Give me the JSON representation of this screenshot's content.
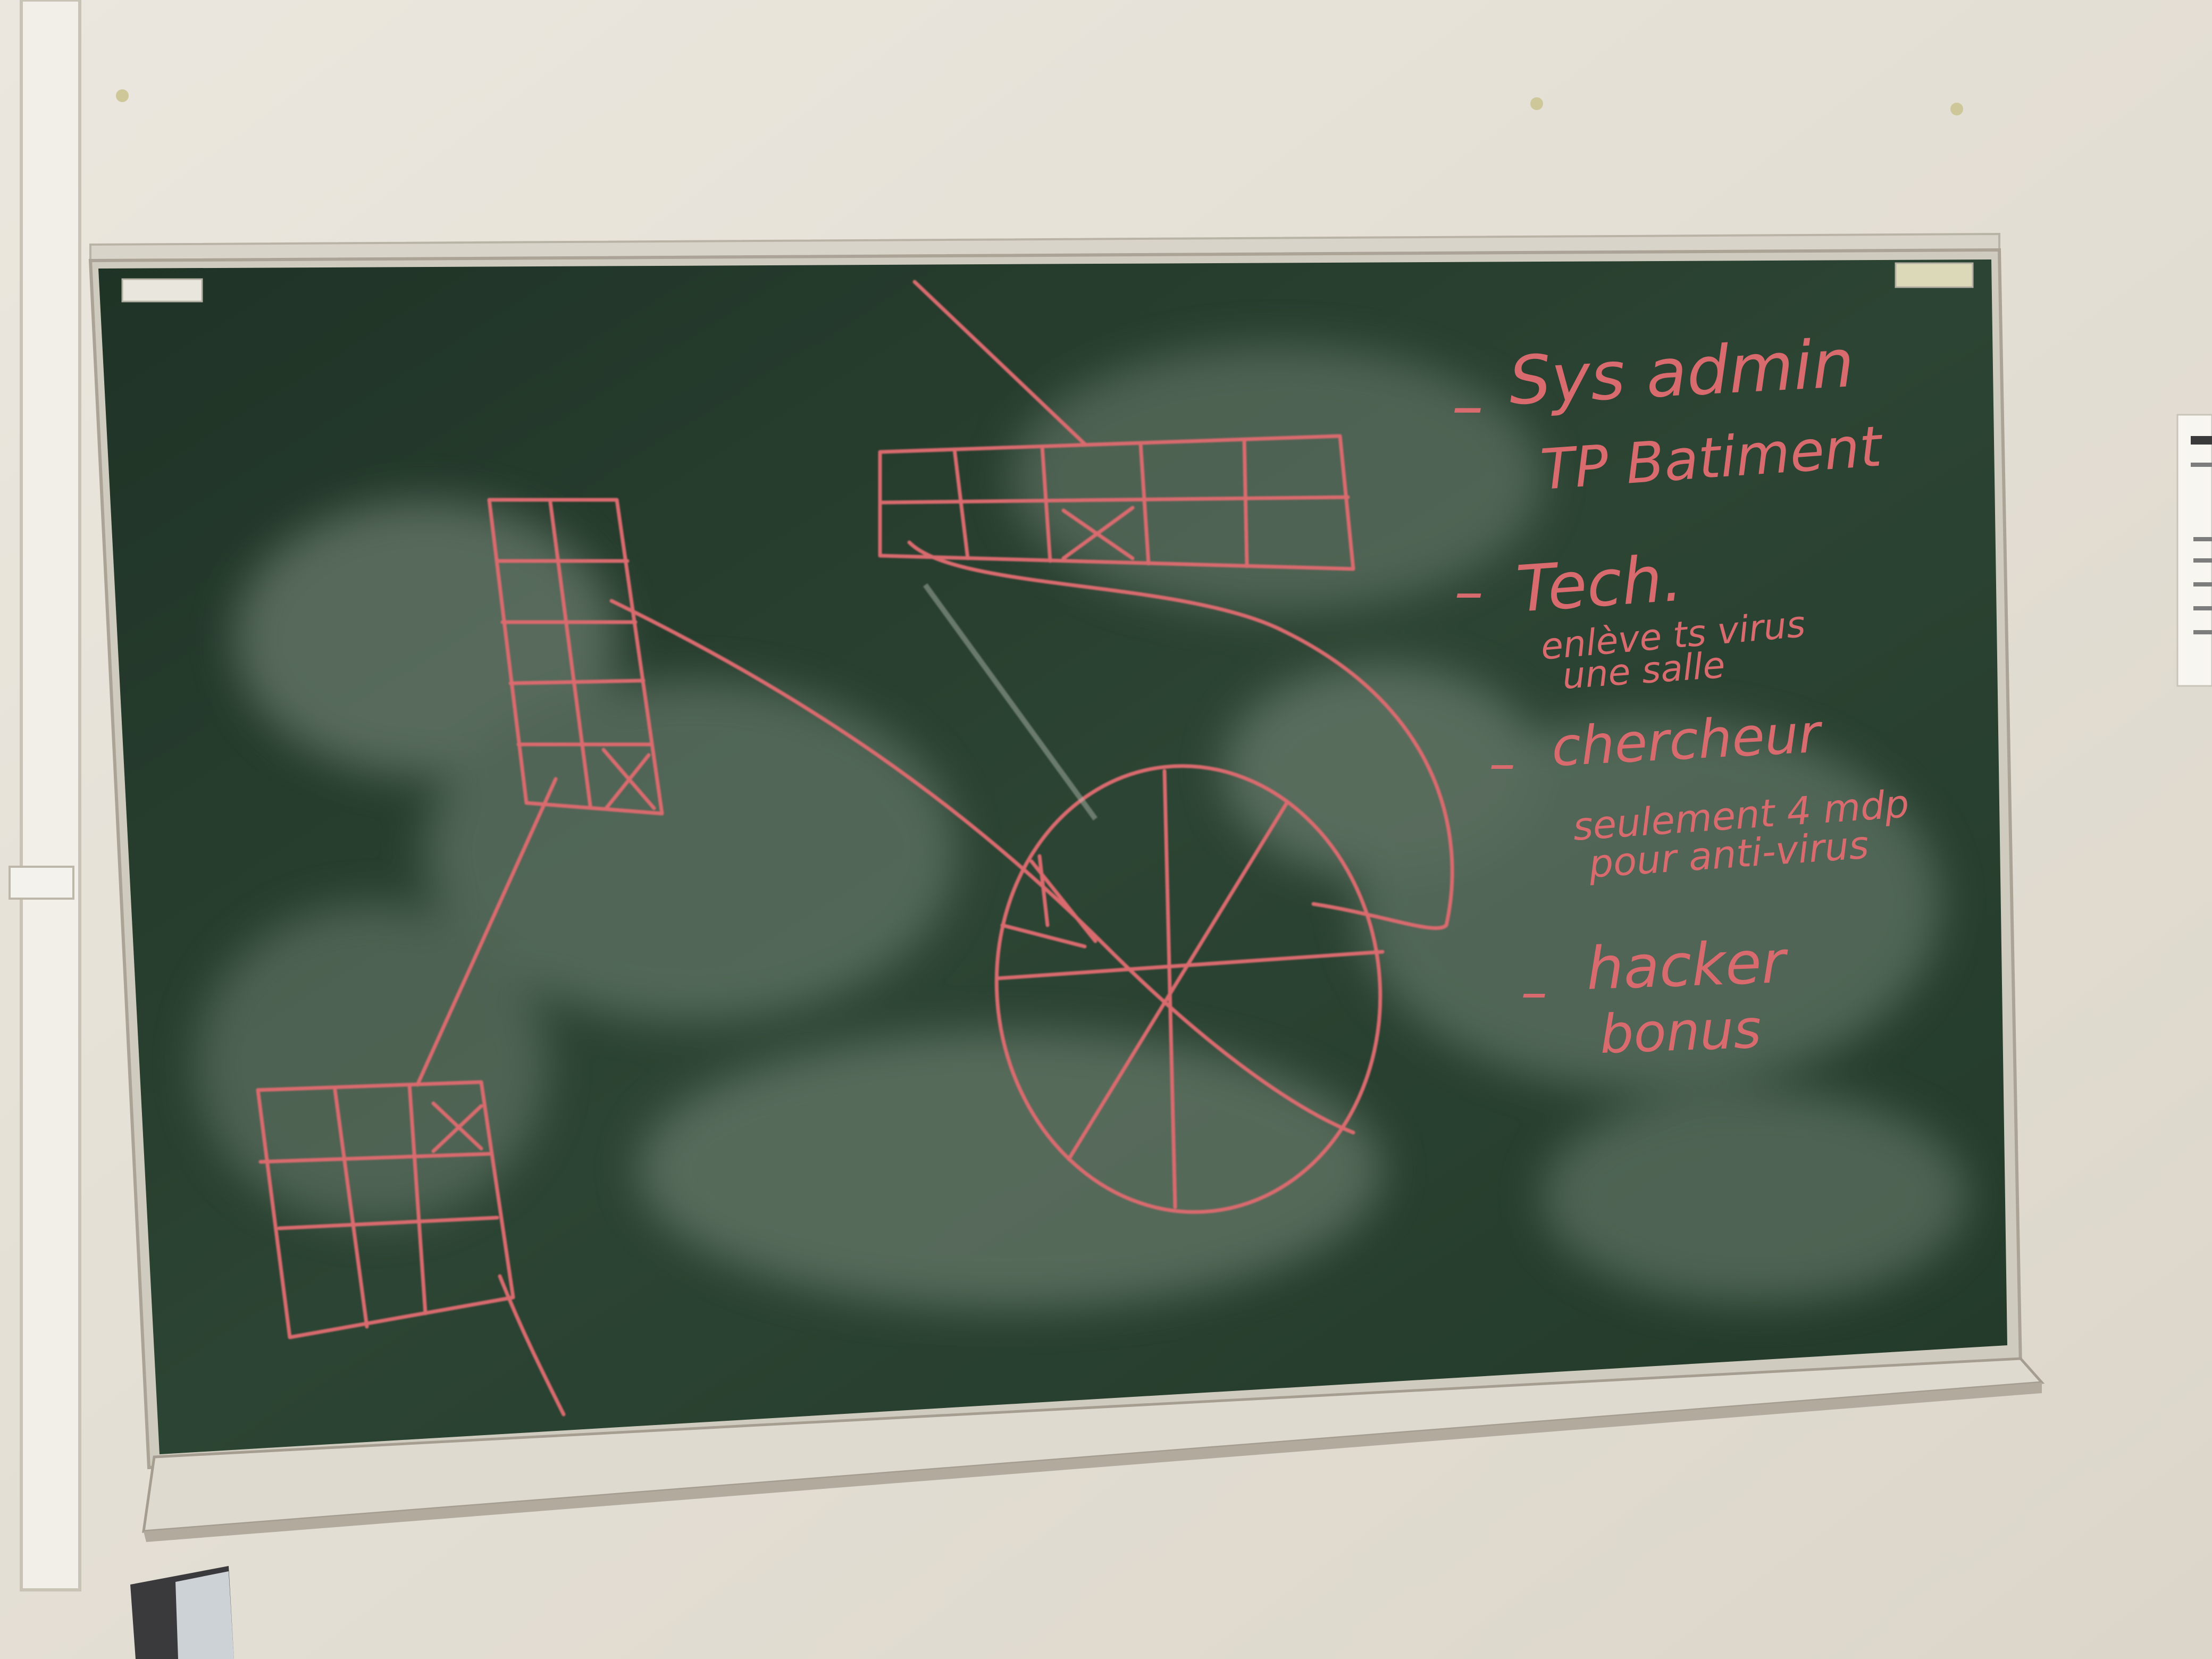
{
  "board": {
    "notes": [
      {
        "dash": "–",
        "line1": "Sys admin",
        "line2": "TP Batiment"
      },
      {
        "dash": "–",
        "line1": "Tech.",
        "line2": "enlève ts virus",
        "line3": "une salle"
      },
      {
        "dash": "–",
        "line1": "chercheur",
        "line2": "seulement 4 mdp",
        "line3": "pour anti-virus"
      },
      {
        "dash": "–",
        "line1": "hacker",
        "line2": "bonus"
      }
    ]
  },
  "colors": {
    "wall": "#e9e4da",
    "board": "#253a2c",
    "frame": "#d6d1c6",
    "chalk": "#d96a6e",
    "smudge": "#8a9a8c"
  }
}
